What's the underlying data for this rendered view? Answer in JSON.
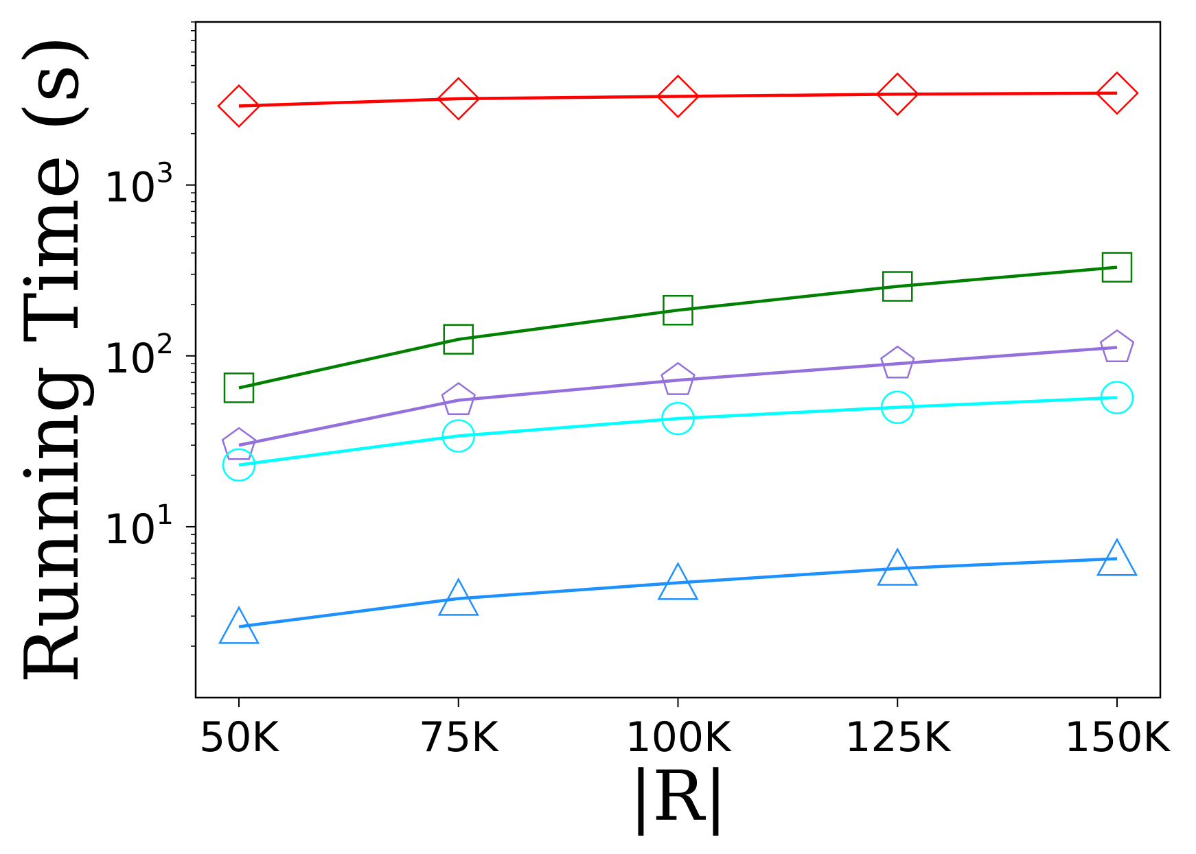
{
  "chart_data": {
    "type": "line",
    "title": "",
    "xlabel": "|R|",
    "ylabel": "Running Time (s)",
    "y_scale": "log",
    "ylim": [
      1,
      9000
    ],
    "grid": false,
    "categories": [
      "50K",
      "75K",
      "100K",
      "125K",
      "150K"
    ],
    "y_ticks": [
      {
        "value": 10,
        "base": "10",
        "exp": "1"
      },
      {
        "value": 100,
        "base": "10",
        "exp": "2"
      },
      {
        "value": 1000,
        "base": "10",
        "exp": "3"
      }
    ],
    "series": [
      {
        "color": "#ff0000",
        "marker": "diamond",
        "values": [
          2900,
          3200,
          3300,
          3400,
          3450
        ]
      },
      {
        "color": "#008000",
        "marker": "square",
        "values": [
          65,
          125,
          185,
          255,
          330
        ]
      },
      {
        "color": "#9370db",
        "marker": "pentagon",
        "values": [
          30,
          55,
          72,
          90,
          112
        ]
      },
      {
        "color": "#00ffff",
        "marker": "circle",
        "values": [
          23,
          34,
          43,
          50,
          57
        ]
      },
      {
        "color": "#1e90ff",
        "marker": "triangle",
        "values": [
          2.6,
          3.8,
          4.7,
          5.7,
          6.5
        ]
      }
    ]
  }
}
